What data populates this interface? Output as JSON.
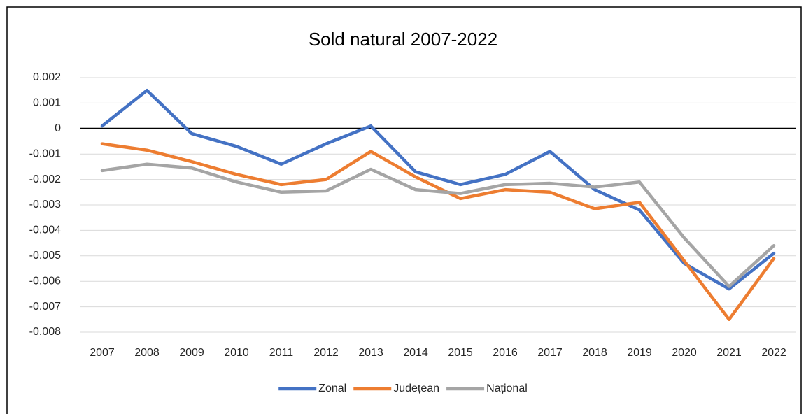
{
  "chart_data": {
    "type": "line",
    "title": "Sold natural 2007-2022",
    "categories": [
      "2007",
      "2008",
      "2009",
      "2010",
      "2011",
      "2012",
      "2013",
      "2014",
      "2015",
      "2016",
      "2017",
      "2018",
      "2019",
      "2020",
      "2021",
      "2022"
    ],
    "series": [
      {
        "name": "Zonal",
        "color": "#4472c4",
        "values": [
          0.0001,
          0.0015,
          -0.0002,
          -0.0007,
          -0.0014,
          -0.0006,
          0.0001,
          -0.0017,
          -0.0022,
          -0.0018,
          -0.0009,
          -0.0024,
          -0.0032,
          -0.0053,
          -0.0063,
          -0.0049
        ]
      },
      {
        "name": "Județean",
        "color": "#ed7d31",
        "values": [
          -0.0006,
          -0.00085,
          -0.0013,
          -0.0018,
          -0.0022,
          -0.002,
          -0.0009,
          -0.0019,
          -0.00275,
          -0.0024,
          -0.0025,
          -0.00315,
          -0.0029,
          -0.0052,
          -0.0075,
          -0.0051
        ]
      },
      {
        "name": "Național",
        "color": "#a5a5a5",
        "values": [
          -0.00165,
          -0.0014,
          -0.00155,
          -0.0021,
          -0.0025,
          -0.00245,
          -0.0016,
          -0.0024,
          -0.00255,
          -0.0022,
          -0.00215,
          -0.0023,
          -0.0021,
          -0.0043,
          -0.0062,
          -0.0046
        ]
      }
    ],
    "ylim": [
      -0.008,
      0.002
    ],
    "yticks": [
      0.002,
      0.001,
      0,
      -0.001,
      -0.002,
      -0.003,
      -0.004,
      -0.005,
      -0.006,
      -0.007,
      -0.008
    ],
    "grid": true,
    "legend": "bottom"
  }
}
